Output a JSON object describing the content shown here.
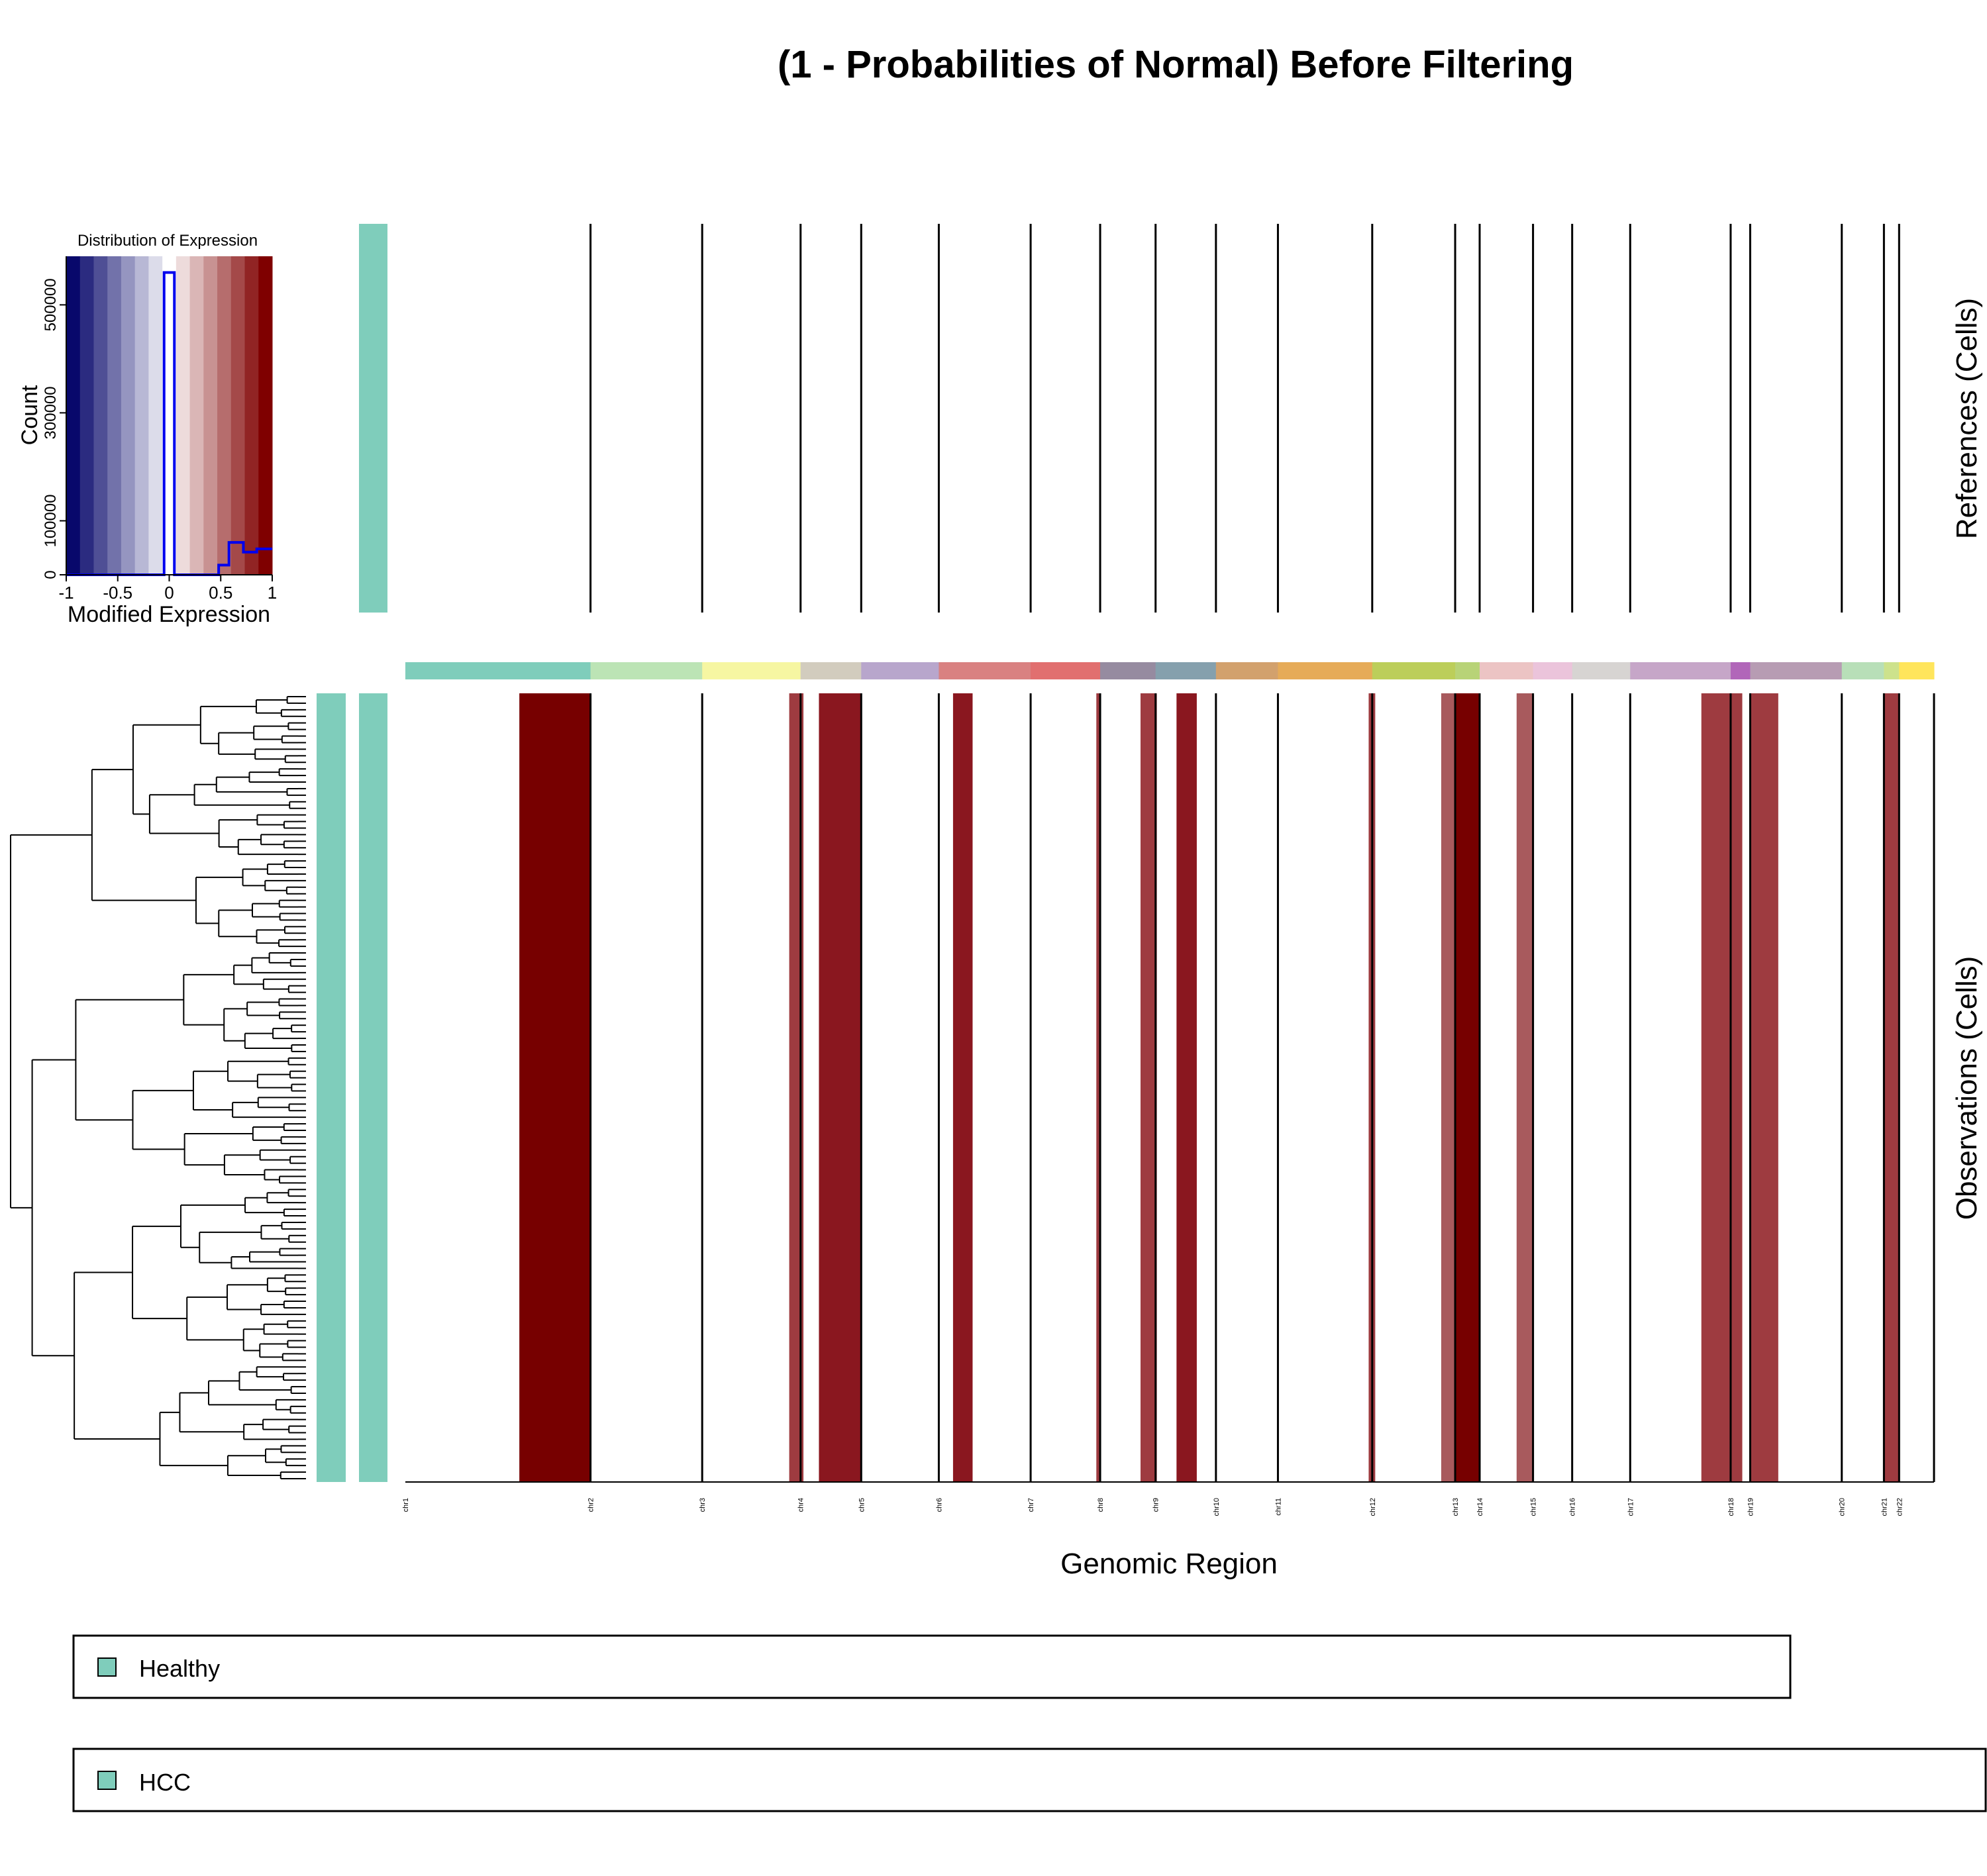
{
  "chart_data": {
    "type": "heatmap",
    "title": "(1 - Probabilities of Normal) Before Filtering",
    "xlabel": "Genomic Region",
    "ylabel_references": "References (Cells)",
    "ylabel_observations": "Observations (Cells)",
    "colors": {
      "line": "#000000",
      "annotation": "#7fcdbb",
      "colorbar_low": "#08086b",
      "colorbar_mid": "#ffffff",
      "colorbar_high": "#7f0000",
      "histogram_line": "#0000ee"
    },
    "chromosomes": [
      {
        "name": "chr1",
        "start": 0,
        "end": 13.53,
        "color": "#7fcdbb"
      },
      {
        "name": "chr2",
        "start": 13.53,
        "end": 21.69,
        "color": "#bce4b5"
      },
      {
        "name": "chr3",
        "start": 21.69,
        "end": 28.88,
        "color": "#f6f6a2"
      },
      {
        "name": "chr4",
        "start": 28.88,
        "end": 33.31,
        "color": "#d2ccbe"
      },
      {
        "name": "chr5",
        "start": 33.31,
        "end": 38.98,
        "color": "#b8a6cc"
      },
      {
        "name": "chr6",
        "start": 38.98,
        "end": 45.69,
        "color": "#d98181"
      },
      {
        "name": "chr7",
        "start": 45.69,
        "end": 50.77,
        "color": "#e16f6f"
      },
      {
        "name": "chr8",
        "start": 50.77,
        "end": 54.82,
        "color": "#968ba0"
      },
      {
        "name": "chr9",
        "start": 54.82,
        "end": 59.23,
        "color": "#85a0ad"
      },
      {
        "name": "chr10",
        "start": 59.23,
        "end": 63.76,
        "color": "#d2a16d"
      },
      {
        "name": "chr11",
        "start": 63.76,
        "end": 70.65,
        "color": "#e6ab58"
      },
      {
        "name": "chr12",
        "start": 70.65,
        "end": 76.71,
        "color": "#bcce5a"
      },
      {
        "name": "chr13",
        "start": 76.71,
        "end": 78.5,
        "color": "#b8d377"
      },
      {
        "name": "chr14",
        "start": 78.5,
        "end": 82.4,
        "color": "#ecc4c4"
      },
      {
        "name": "chr15",
        "start": 82.4,
        "end": 85.26,
        "color": "#ebc4db"
      },
      {
        "name": "chr16",
        "start": 85.26,
        "end": 89.5,
        "color": "#d7d4d2"
      },
      {
        "name": "chr17",
        "start": 89.5,
        "end": 96.84,
        "color": "#c6a6c8"
      },
      {
        "name": "chr18",
        "start": 96.84,
        "end": 98.27,
        "color": "#b166b9"
      },
      {
        "name": "chr19",
        "start": 98.27,
        "end": 104.96,
        "color": "#b79cb3"
      },
      {
        "name": "chr20",
        "start": 104.96,
        "end": 108.04,
        "color": "#b8dfb8"
      },
      {
        "name": "chr21",
        "start": 108.04,
        "end": 109.15,
        "color": "#cde28c"
      },
      {
        "name": "chr22",
        "start": 109.15,
        "end": 111.7,
        "color": "#ffe55c"
      }
    ],
    "observation_blocks": [
      {
        "start": 8.33,
        "end": 13.53,
        "value": 1.0,
        "color": "#770000"
      },
      {
        "start": 28.05,
        "end": 29.09,
        "value": 0.7,
        "color": "#9e3b40"
      },
      {
        "start": 30.22,
        "end": 33.31,
        "value": 0.9,
        "color": "#8a171f"
      },
      {
        "start": 40.02,
        "end": 41.45,
        "value": 0.9,
        "color": "#8a171f"
      },
      {
        "start": 50.49,
        "end": 50.84,
        "value": 0.7,
        "color": "#9e3b40"
      },
      {
        "start": 53.72,
        "end": 54.91,
        "value": 0.7,
        "color": "#9e3b40"
      },
      {
        "start": 56.35,
        "end": 57.83,
        "value": 0.9,
        "color": "#8a171f"
      },
      {
        "start": 70.39,
        "end": 70.87,
        "value": 0.7,
        "color": "#9e3b40"
      },
      {
        "start": 75.69,
        "end": 76.71,
        "value": 0.6,
        "color": "#a85a5d"
      },
      {
        "start": 76.71,
        "end": 78.57,
        "value": 1.0,
        "color": "#770000"
      },
      {
        "start": 81.2,
        "end": 82.45,
        "value": 0.6,
        "color": "#a85a5d"
      },
      {
        "start": 94.7,
        "end": 97.69,
        "value": 0.7,
        "color": "#9e3b40"
      },
      {
        "start": 98.27,
        "end": 100.32,
        "value": 0.7,
        "color": "#9e3b40"
      },
      {
        "start": 108.04,
        "end": 109.15,
        "value": 0.7,
        "color": "#9e3b40"
      }
    ],
    "color_key": {
      "title": "Distribution of Expression",
      "xlabel": "Modified Expression",
      "ylabel": "Count",
      "xticks": [
        "-1",
        "-0.5",
        "0",
        "0.5",
        "1"
      ],
      "yticks": [
        "0",
        "100000",
        "300000",
        "500000"
      ],
      "ylim": [
        0,
        590000
      ],
      "xlim": [
        -1,
        1
      ],
      "histogram": [
        {
          "x0": -1.0,
          "x1": -0.05,
          "count": 0
        },
        {
          "x0": -0.05,
          "x1": 0.05,
          "count": 560000
        },
        {
          "x0": 0.05,
          "x1": 0.48,
          "count": 0
        },
        {
          "x0": 0.48,
          "x1": 0.58,
          "count": 18000
        },
        {
          "x0": 0.58,
          "x1": 0.72,
          "count": 60000
        },
        {
          "x0": 0.72,
          "x1": 0.85,
          "count": 42000
        },
        {
          "x0": 0.85,
          "x1": 1.0,
          "count": 48000
        }
      ]
    },
    "legend": [
      {
        "label": "Healthy",
        "color": "#7fcdbb"
      },
      {
        "label": "HCC",
        "color": "#7fcdbb"
      }
    ],
    "reference_cells": 1,
    "observation_cells": 120
  }
}
